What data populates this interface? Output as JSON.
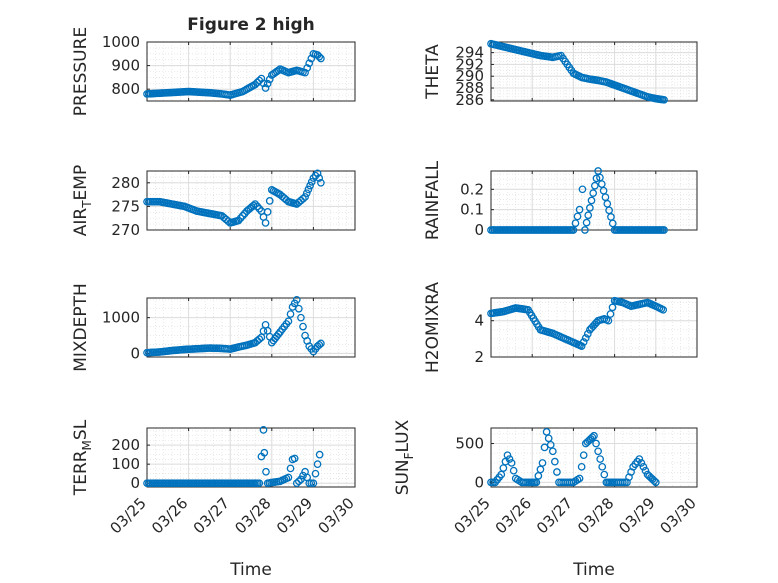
{
  "figure": {
    "title": "Figure 2 high",
    "xlabel": "Time",
    "marker_color": "#0072bd",
    "grid_color": "#dcdcdc"
  },
  "chart_data": [
    {
      "id": "pressure",
      "type": "scatter",
      "title": "Figure 2 high",
      "ylabel": "PRESSURE",
      "ylabel_main": "PRESSURE",
      "ylabel_sub": "",
      "ylabel_tail": "",
      "xlim": [
        "2023-03-25",
        "2023-03-30"
      ],
      "ylim": [
        750,
        1000
      ],
      "yticks": [
        800,
        900,
        1000
      ],
      "xticks": [],
      "grid": true,
      "x_days": [
        0,
        0.5,
        1.0,
        1.5,
        1.8,
        2.0,
        2.3,
        2.6,
        2.75,
        2.85,
        3.0,
        3.2,
        3.4,
        3.6,
        3.8,
        3.9,
        4.0,
        4.1,
        4.18
      ],
      "y": [
        780,
        785,
        790,
        785,
        780,
        775,
        790,
        820,
        845,
        805,
        860,
        885,
        870,
        880,
        870,
        910,
        950,
        945,
        930
      ]
    },
    {
      "id": "theta",
      "type": "scatter",
      "ylabel": "THETA",
      "ylabel_main": "THETA",
      "ylabel_sub": "",
      "ylabel_tail": "",
      "xlim": [
        "2023-03-25",
        "2023-03-30"
      ],
      "ylim": [
        285.8,
        295.8
      ],
      "yticks": [
        286,
        288,
        290,
        292,
        294
      ],
      "xticks": [],
      "grid": true,
      "x_days": [
        0,
        0.3,
        0.6,
        0.9,
        1.2,
        1.5,
        1.7,
        1.85,
        2.0,
        2.2,
        2.4,
        2.6,
        2.8,
        3.0,
        3.2,
        3.4,
        3.6,
        3.8,
        4.0,
        4.2
      ],
      "y": [
        295.5,
        295.0,
        294.5,
        294.0,
        293.5,
        293.2,
        293.5,
        292.0,
        290.5,
        289.8,
        289.5,
        289.3,
        289.0,
        288.5,
        288.0,
        287.5,
        287.0,
        286.5,
        286.2,
        286.0
      ]
    },
    {
      "id": "air-temp",
      "type": "scatter",
      "ylabel": "AIR_TEMP",
      "ylabel_main": "AIR",
      "ylabel_sub": "T",
      "ylabel_tail": "EMP",
      "xlim": [
        "2023-03-25",
        "2023-03-30"
      ],
      "ylim": [
        270,
        282.5
      ],
      "yticks": [
        270,
        275,
        280
      ],
      "xticks": [],
      "grid": true,
      "x_days": [
        0,
        0.3,
        0.6,
        0.9,
        1.2,
        1.5,
        1.8,
        2.0,
        2.2,
        2.4,
        2.6,
        2.75,
        2.85,
        3.0,
        3.2,
        3.4,
        3.6,
        3.8,
        4.0,
        4.1,
        4.18
      ],
      "y": [
        276,
        276,
        275.5,
        275,
        274,
        273.5,
        273,
        271.5,
        272,
        274,
        275.5,
        274,
        271.5,
        278.5,
        277.5,
        276,
        275.5,
        277,
        281,
        282,
        280
      ]
    },
    {
      "id": "rainfall",
      "type": "scatter",
      "ylabel": "RAINFALL",
      "ylabel_main": "RAINFALL",
      "ylabel_sub": "",
      "ylabel_tail": "",
      "xlim": [
        "2023-03-25",
        "2023-03-30"
      ],
      "ylim": [
        0,
        0.29
      ],
      "yticks": [
        0,
        0.1,
        0.2
      ],
      "xticks": [],
      "grid": true,
      "x_days": [
        0,
        0.5,
        1.0,
        1.5,
        2.0,
        2.15,
        2.22,
        2.28,
        2.6,
        3.0,
        3.5,
        4.0,
        4.2
      ],
      "y": [
        0,
        0,
        0,
        0,
        0,
        0.1,
        0.2,
        0,
        0.29,
        0,
        0,
        0,
        0
      ]
    },
    {
      "id": "mixdepth",
      "type": "scatter",
      "ylabel": "MIXDEPTH",
      "ylabel_main": "MIXDEPTH",
      "ylabel_sub": "",
      "ylabel_tail": "",
      "xlim": [
        "2023-03-25",
        "2023-03-30"
      ],
      "ylim": [
        -100,
        1550
      ],
      "yticks": [
        0,
        1000
      ],
      "xticks": [],
      "grid": true,
      "x_days": [
        0,
        0.3,
        0.6,
        0.9,
        1.2,
        1.5,
        1.8,
        2.0,
        2.2,
        2.4,
        2.6,
        2.75,
        2.85,
        3.0,
        3.2,
        3.4,
        3.5,
        3.6,
        3.7,
        3.8,
        3.9,
        4.0,
        4.1,
        4.18
      ],
      "y": [
        20,
        40,
        80,
        110,
        130,
        150,
        140,
        120,
        180,
        230,
        300,
        450,
        800,
        300,
        600,
        900,
        1300,
        1500,
        1000,
        500,
        200,
        50,
        200,
        280
      ]
    },
    {
      "id": "h2omixra",
      "type": "scatter",
      "ylabel": "H2OMIXRA",
      "ylabel_main": "H2OMIXRA",
      "ylabel_sub": "",
      "ylabel_tail": "",
      "xlim": [
        "2023-03-25",
        "2023-03-30"
      ],
      "ylim": [
        2,
        5.25
      ],
      "yticks": [
        2,
        4
      ],
      "xticks": [],
      "grid": true,
      "x_days": [
        0,
        0.3,
        0.6,
        0.9,
        1.2,
        1.5,
        1.8,
        2.0,
        2.2,
        2.4,
        2.6,
        2.75,
        2.85,
        3.0,
        3.2,
        3.4,
        3.6,
        3.8,
        4.0,
        4.18
      ],
      "y": [
        4.4,
        4.5,
        4.7,
        4.6,
        3.5,
        3.3,
        3.0,
        2.8,
        2.6,
        3.5,
        4.0,
        4.1,
        4.0,
        5.1,
        5.0,
        4.8,
        4.9,
        5.0,
        4.8,
        4.6
      ]
    },
    {
      "id": "terr-msl",
      "type": "scatter",
      "ylabel": "TERR_MSL",
      "ylabel_main": "TERR",
      "ylabel_sub": "M",
      "ylabel_tail": "SL",
      "xlim": [
        "2023-03-25",
        "2023-03-30"
      ],
      "ylim": [
        -20,
        290
      ],
      "yticks": [
        0,
        100,
        200
      ],
      "xticks": [
        "03/25",
        "03/26",
        "03/27",
        "03/28",
        "03/29",
        "03/30"
      ],
      "grid": true,
      "x_days": [
        0,
        0.5,
        1.0,
        1.5,
        2.0,
        2.5,
        2.7,
        2.8,
        2.82,
        2.86,
        2.9,
        3.2,
        3.4,
        3.5,
        3.55,
        3.6,
        3.7,
        3.8,
        3.9,
        4.0,
        4.1,
        4.15
      ],
      "y": [
        0,
        0,
        0,
        0,
        0,
        0,
        0,
        280,
        160,
        60,
        0,
        10,
        30,
        125,
        130,
        0,
        20,
        60,
        0,
        0,
        100,
        150
      ]
    },
    {
      "id": "sun-flux",
      "type": "scatter",
      "ylabel": "SUN_FLUX",
      "ylabel_main": "SUN",
      "ylabel_sub": "F",
      "ylabel_tail": "LUX",
      "xlim": [
        "2023-03-25",
        "2023-03-30"
      ],
      "ylim": [
        -60,
        700
      ],
      "yticks": [
        0,
        500
      ],
      "xticks": [
        "03/25",
        "03/26",
        "03/27",
        "03/28",
        "03/29",
        "03/30"
      ],
      "grid": true,
      "x_days": [
        0,
        0.1,
        0.25,
        0.4,
        0.5,
        0.6,
        0.75,
        0.9,
        1.1,
        1.25,
        1.35,
        1.5,
        1.65,
        1.8,
        2.0,
        2.15,
        2.3,
        2.5,
        2.65,
        2.8,
        3.0,
        3.15,
        3.3,
        3.45,
        3.6,
        3.8,
        4.0
      ],
      "y": [
        0,
        0,
        100,
        350,
        250,
        50,
        0,
        0,
        0,
        250,
        650,
        400,
        0,
        0,
        0,
        50,
        500,
        600,
        300,
        0,
        0,
        0,
        0,
        200,
        300,
        100,
        0
      ]
    }
  ]
}
